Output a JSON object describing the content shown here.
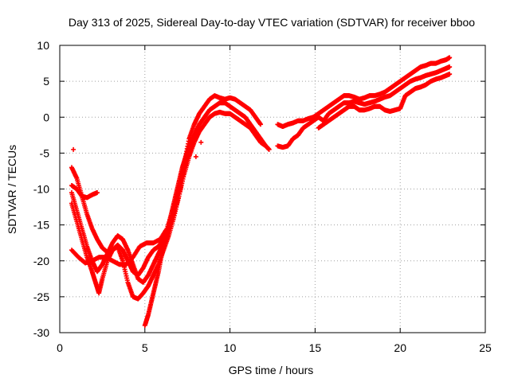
{
  "chart_data": {
    "type": "scatter",
    "title": "Day 313 of 2025, Sidereal Day-to-day VTEC variation (SDTVAR) for receiver bboo",
    "xlabel": "GPS time / hours",
    "ylabel": "SDTVAR / TECUs",
    "xlim": [
      0,
      25
    ],
    "ylim": [
      -30,
      10
    ],
    "xticks": [
      "0",
      "5",
      "10",
      "15",
      "20",
      "25"
    ],
    "yticks": [
      "10",
      "5",
      "0",
      "-5",
      "-10",
      "-15",
      "-20",
      "-25",
      "-30"
    ],
    "grid": true,
    "marker": "+",
    "series_color": "#ff0000",
    "series": [
      {
        "x": [
          0.7,
          1.0,
          1.3,
          1.6,
          1.9,
          2.2,
          2.5,
          2.8,
          3.1,
          3.4,
          3.7,
          4.0,
          4.3,
          4.6,
          4.9,
          5.2,
          5.5,
          5.8,
          6.1,
          6.4,
          6.7,
          7.0,
          7.3,
          7.6,
          7.9,
          8.2,
          8.5,
          8.8,
          9.1,
          9.4,
          9.7,
          10.0,
          10.3,
          10.6,
          10.9,
          11.2,
          11.5,
          11.8
        ],
        "y": [
          -7.0,
          -8.5,
          -11.0,
          -13.5,
          -15.5,
          -17.0,
          -18.2,
          -18.8,
          -18.5,
          -17.8,
          -18.5,
          -20.0,
          -21.5,
          -22.0,
          -21.0,
          -19.5,
          -18.5,
          -18.0,
          -17.0,
          -15.5,
          -13.0,
          -10.0,
          -6.5,
          -3.0,
          -1.0,
          0.5,
          1.5,
          2.5,
          3.0,
          2.7,
          2.5,
          2.7,
          2.5,
          2.0,
          1.5,
          1.0,
          0.0,
          -1.0
        ]
      },
      {
        "x": [
          0.7,
          1.0,
          1.3,
          1.6,
          1.9,
          2.2,
          2.5,
          2.8,
          3.1,
          3.4,
          3.7,
          4.0,
          4.3,
          4.6,
          4.9,
          5.2,
          5.5,
          5.8,
          6.1,
          6.4,
          6.7,
          7.0,
          7.3,
          7.6,
          7.9,
          8.2,
          8.5,
          8.8,
          9.1,
          9.4,
          9.7,
          10.0,
          10.3,
          10.6,
          10.9,
          11.2,
          11.5,
          11.8,
          12.1
        ],
        "y": [
          -10.5,
          -13.0,
          -15.5,
          -18.0,
          -20.0,
          -21.5,
          -20.5,
          -19.0,
          -17.5,
          -16.5,
          -17.0,
          -18.5,
          -20.5,
          -22.5,
          -23.0,
          -22.0,
          -20.5,
          -19.0,
          -17.5,
          -16.0,
          -13.5,
          -11.0,
          -7.5,
          -4.5,
          -2.5,
          -1.0,
          0.0,
          1.0,
          1.5,
          2.0,
          2.0,
          1.5,
          1.0,
          0.5,
          0.0,
          -1.0,
          -2.0,
          -3.0,
          -4.0
        ]
      },
      {
        "x": [
          0.7,
          1.0,
          1.3,
          1.6,
          1.9,
          2.1,
          2.3,
          2.5,
          2.8,
          3.1,
          3.4,
          3.7,
          4.0,
          4.3,
          4.6,
          4.9,
          5.2,
          5.5,
          5.8,
          6.1,
          6.4,
          6.7,
          7.0,
          7.3,
          7.6,
          7.9,
          8.2,
          8.5,
          8.8,
          9.1,
          9.4,
          9.7,
          10.0,
          10.3,
          10.6,
          10.9,
          11.2,
          11.5,
          11.8,
          12.1,
          12.3
        ],
        "y": [
          -12.0,
          -14.5,
          -17.0,
          -19.5,
          -21.5,
          -23.0,
          -24.5,
          -22.5,
          -20.0,
          -18.5,
          -18.0,
          -20.0,
          -23.0,
          -25.0,
          -25.3,
          -24.5,
          -23.5,
          -22.0,
          -20.5,
          -18.5,
          -16.5,
          -14.0,
          -11.0,
          -8.0,
          -5.5,
          -3.5,
          -2.0,
          -1.0,
          0.0,
          0.5,
          0.7,
          0.5,
          0.5,
          0.0,
          -0.5,
          -1.0,
          -1.5,
          -2.5,
          -3.5,
          -4.0,
          -4.5
        ]
      },
      {
        "x": [
          0.7,
          1.0,
          1.3,
          1.6,
          1.9,
          2.2
        ],
        "y": [
          -9.5,
          -10.0,
          -11.0,
          -11.2,
          -10.8,
          -10.5
        ]
      },
      {
        "x": [
          0.7,
          1.1,
          1.5,
          1.9,
          2.3,
          2.7,
          3.1,
          3.5,
          3.9,
          4.3,
          4.7,
          5.1,
          5.5,
          5.9,
          6.3,
          6.7,
          7.1,
          7.5
        ],
        "y": [
          -18.5,
          -19.5,
          -20.3,
          -20.0,
          -19.5,
          -19.5,
          -20.0,
          -20.5,
          -20.5,
          -19.5,
          -18.0,
          -17.5,
          -17.5,
          -17.0,
          -15.5,
          -12.5,
          -9.0,
          -5.5
        ]
      },
      {
        "x": [
          5.0,
          5.2,
          5.4,
          5.6,
          5.8,
          6.0,
          6.2,
          6.4,
          6.6,
          6.8,
          7.0,
          7.2,
          7.4,
          7.6,
          7.8,
          8.0
        ],
        "y": [
          -29.0,
          -27.5,
          -25.5,
          -23.5,
          -21.5,
          -19.0,
          -17.0,
          -15.0,
          -13.0,
          -11.0,
          -9.0,
          -7.0,
          -5.5,
          -4.0,
          -3.0,
          -2.5
        ]
      },
      {
        "x": [
          0.8,
          8.0,
          8.3
        ],
        "y": [
          -4.5,
          -5.5,
          -3.5
        ]
      },
      {
        "x": [
          12.8,
          13.1,
          13.4,
          13.7,
          14.0,
          14.3,
          14.6,
          14.9,
          15.2,
          15.5,
          15.8,
          16.1,
          16.4,
          16.7,
          17.0,
          17.3,
          17.6,
          17.9,
          18.2,
          18.5,
          18.8,
          19.1,
          19.4,
          19.7,
          20.0,
          20.3,
          20.6,
          20.9,
          21.2,
          21.5,
          21.8,
          22.1,
          22.4,
          22.7,
          22.9
        ],
        "y": [
          -1.0,
          -1.3,
          -1.0,
          -0.8,
          -0.5,
          -0.5,
          -0.2,
          0.0,
          0.5,
          1.0,
          1.5,
          2.0,
          2.5,
          3.0,
          3.0,
          2.8,
          2.5,
          2.7,
          3.0,
          3.0,
          3.2,
          3.5,
          4.0,
          4.5,
          5.0,
          5.5,
          6.0,
          6.5,
          7.0,
          7.2,
          7.5,
          7.5,
          7.8,
          8.0,
          8.3
        ]
      },
      {
        "x": [
          12.8,
          13.1,
          13.4,
          13.7,
          14.0,
          14.3,
          14.6,
          14.9,
          15.2,
          15.5,
          15.8,
          16.1,
          16.4,
          16.7,
          17.0,
          17.3,
          17.6,
          17.9,
          18.2,
          18.5,
          18.8,
          19.1,
          19.4,
          19.7,
          20.0,
          20.3,
          20.6,
          20.9,
          21.2,
          21.5,
          21.8,
          22.1,
          22.4,
          22.7,
          22.9
        ],
        "y": [
          -4.0,
          -4.2,
          -4.0,
          -3.0,
          -2.5,
          -1.5,
          -1.0,
          -0.5,
          0.0,
          -0.5,
          0.5,
          1.0,
          1.5,
          2.0,
          2.0,
          2.2,
          2.0,
          1.8,
          2.0,
          2.2,
          2.5,
          2.8,
          3.0,
          3.5,
          4.0,
          4.5,
          5.0,
          5.3,
          5.5,
          5.8,
          6.0,
          6.2,
          6.5,
          6.8,
          7.0
        ]
      },
      {
        "x": [
          15.2,
          15.5,
          15.8,
          16.1,
          16.4,
          16.7,
          17.0,
          17.3,
          17.6,
          17.9,
          18.2,
          18.5,
          18.8,
          19.1,
          19.4,
          19.7,
          20.0,
          20.3,
          20.6,
          20.9,
          21.2,
          21.5,
          21.8,
          22.1,
          22.4,
          22.7,
          22.9
        ],
        "y": [
          -1.5,
          -1.0,
          -0.5,
          0.0,
          0.5,
          1.0,
          1.5,
          1.5,
          1.0,
          1.0,
          1.2,
          1.5,
          1.5,
          1.0,
          0.8,
          1.0,
          1.2,
          3.0,
          3.5,
          4.0,
          4.2,
          4.5,
          5.0,
          5.3,
          5.5,
          5.8,
          6.0
        ]
      }
    ]
  }
}
